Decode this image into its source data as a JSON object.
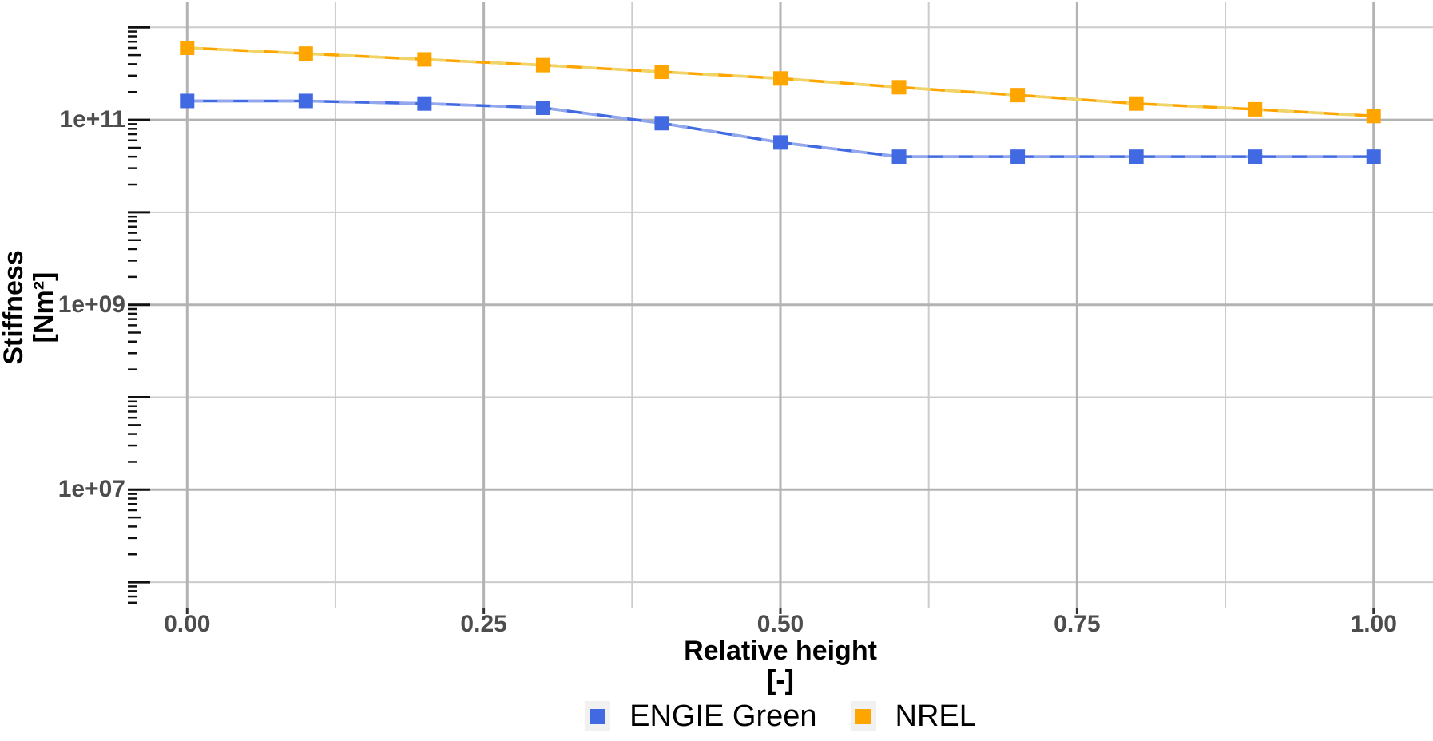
{
  "chart_data": {
    "type": "line",
    "title": "",
    "yscale": "log10",
    "x": [
      0.0,
      0.1,
      0.2,
      0.3,
      0.4,
      0.5,
      0.6,
      0.7,
      0.8,
      0.9,
      1.0
    ],
    "series": [
      {
        "name": "ENGIE Green",
        "color": "#4169E1",
        "color_light": "#93A7ED",
        "marker": "square",
        "values": [
          160000000000.0,
          160000000000.0,
          150000000000.0,
          135000000000.0,
          92000000000.0,
          57000000000.0,
          40000000000.0,
          40000000000.0,
          40000000000.0,
          40000000000.0,
          40000000000.0
        ]
      },
      {
        "name": "NREL",
        "color": "#FFA500",
        "color_light": "#F0D468",
        "marker": "square",
        "values": [
          600000000000.0,
          520000000000.0,
          450000000000.0,
          390000000000.0,
          330000000000.0,
          280000000000.0,
          225000000000.0,
          185000000000.0,
          150000000000.0,
          130000000000.0,
          110000000000.0
        ]
      }
    ],
    "xlabel": "Relative height",
    "xlabel_units": "[-]",
    "ylabel": "Stiffness",
    "ylabel_units": "[Nm²]",
    "x_ticks": [
      {
        "value": 0.0,
        "label": "0.00"
      },
      {
        "value": 0.25,
        "label": "0.25"
      },
      {
        "value": 0.5,
        "label": "0.50"
      },
      {
        "value": 0.75,
        "label": "0.75"
      },
      {
        "value": 1.0,
        "label": "1.00"
      }
    ],
    "x_minor_gridlines": [
      0.125,
      0.375,
      0.625,
      0.875
    ],
    "y_ticks": [
      {
        "value": 10000000.0,
        "label": "1e+07"
      },
      {
        "value": 1000000000.0,
        "label": "1e+09"
      },
      {
        "value": 100000000000.0,
        "label": "1e+11"
      }
    ],
    "y_minor_gridlines": [
      1000000.0,
      100000000.0,
      10000000000.0,
      1000000000000.0
    ],
    "xlim": [
      -0.05,
      1.05
    ],
    "ylim": [
      520000.0,
      1900000000000.0
    ],
    "grid": "major+minor",
    "log_ticks_side": "left",
    "legend_position": "bottom"
  },
  "colors": {
    "background": "#ffffff",
    "grid_major": "#b3b3b3",
    "grid_minor": "#cccccc",
    "tick_label": "#4d4d4d",
    "axis_title": "#000000",
    "log_ticks": "#111111",
    "x_axis_ticks": "#333333",
    "legend_key_bg": "#f1f1f1",
    "legend_text": "#000000"
  }
}
